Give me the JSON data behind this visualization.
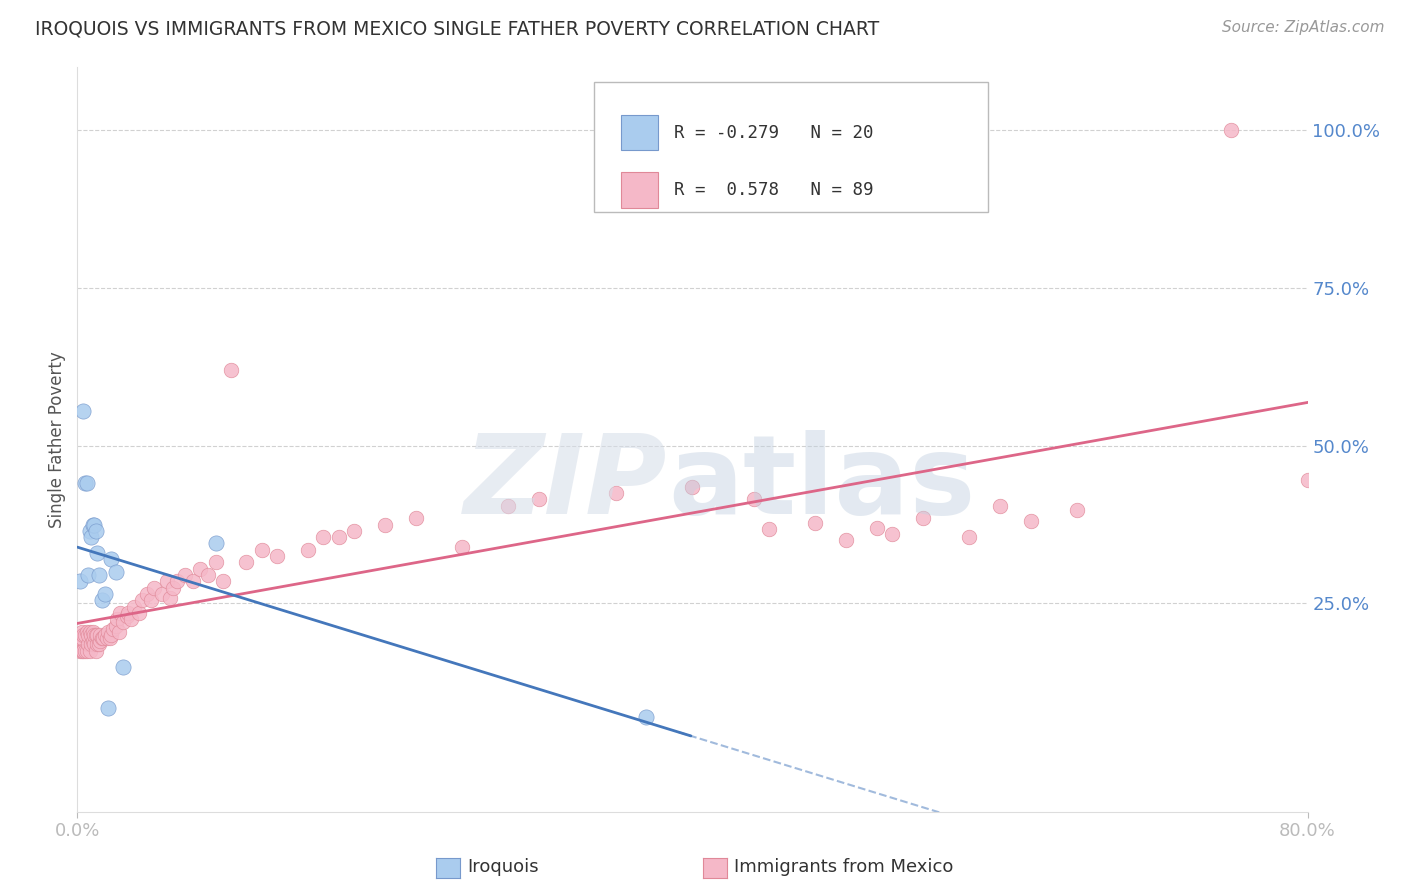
{
  "title": "IROQUOIS VS IMMIGRANTS FROM MEXICO SINGLE FATHER POVERTY CORRELATION CHART",
  "source": "Source: ZipAtlas.com",
  "ylabel": "Single Father Poverty",
  "xlim": [
    0.0,
    0.8
  ],
  "ylim": [
    -0.08,
    1.1
  ],
  "yticks_right": [
    0.25,
    0.5,
    0.75,
    1.0
  ],
  "ytick_right_labels": [
    "25.0%",
    "50.0%",
    "75.0%",
    "100.0%"
  ],
  "grid_color": "#cccccc",
  "bg_color": "#ffffff",
  "series1_label": "Iroquois",
  "series2_label": "Immigrants from Mexico",
  "series1_color": "#aaccee",
  "series2_color": "#f5b8c8",
  "series1_edge": "#7799cc",
  "series2_edge": "#e08898",
  "line1_color": "#4477bb",
  "line2_color": "#dd6688",
  "legend_R1": "-0.279",
  "legend_N1": "20",
  "legend_R2": "0.578",
  "legend_N2": "89",
  "iroquois_x": [
    0.002,
    0.004,
    0.005,
    0.006,
    0.007,
    0.008,
    0.009,
    0.01,
    0.011,
    0.012,
    0.013,
    0.014,
    0.016,
    0.018,
    0.02,
    0.022,
    0.025,
    0.03,
    0.09,
    0.37
  ],
  "iroquois_y": [
    0.285,
    0.555,
    0.44,
    0.44,
    0.295,
    0.365,
    0.355,
    0.375,
    0.375,
    0.365,
    0.33,
    0.295,
    0.255,
    0.265,
    0.085,
    0.32,
    0.3,
    0.15,
    0.345,
    0.07
  ],
  "mexico_x": [
    0.002,
    0.002,
    0.003,
    0.003,
    0.003,
    0.004,
    0.004,
    0.005,
    0.005,
    0.006,
    0.006,
    0.007,
    0.007,
    0.008,
    0.008,
    0.009,
    0.009,
    0.01,
    0.01,
    0.011,
    0.011,
    0.012,
    0.012,
    0.013,
    0.013,
    0.014,
    0.015,
    0.015,
    0.016,
    0.017,
    0.018,
    0.019,
    0.02,
    0.021,
    0.022,
    0.023,
    0.025,
    0.026,
    0.027,
    0.028,
    0.03,
    0.032,
    0.033,
    0.035,
    0.037,
    0.04,
    0.042,
    0.045,
    0.048,
    0.05,
    0.055,
    0.058,
    0.06,
    0.062,
    0.065,
    0.07,
    0.075,
    0.08,
    0.085,
    0.09,
    0.095,
    0.1,
    0.11,
    0.12,
    0.13,
    0.15,
    0.16,
    0.17,
    0.18,
    0.2,
    0.22,
    0.25,
    0.28,
    0.3,
    0.35,
    0.4,
    0.45,
    0.5,
    0.55,
    0.6,
    0.65,
    0.48,
    0.53,
    0.75,
    0.8,
    0.44,
    0.52,
    0.58,
    0.62
  ],
  "mexico_y": [
    0.175,
    0.195,
    0.175,
    0.195,
    0.205,
    0.175,
    0.2,
    0.175,
    0.2,
    0.175,
    0.205,
    0.185,
    0.2,
    0.175,
    0.205,
    0.185,
    0.2,
    0.19,
    0.205,
    0.185,
    0.2,
    0.175,
    0.2,
    0.185,
    0.2,
    0.185,
    0.19,
    0.2,
    0.195,
    0.195,
    0.2,
    0.195,
    0.205,
    0.195,
    0.2,
    0.21,
    0.215,
    0.225,
    0.205,
    0.235,
    0.22,
    0.23,
    0.235,
    0.225,
    0.245,
    0.235,
    0.255,
    0.265,
    0.255,
    0.275,
    0.265,
    0.285,
    0.258,
    0.275,
    0.285,
    0.295,
    0.285,
    0.305,
    0.295,
    0.315,
    0.285,
    0.62,
    0.315,
    0.335,
    0.325,
    0.335,
    0.355,
    0.355,
    0.365,
    0.375,
    0.385,
    0.34,
    0.405,
    0.415,
    0.425,
    0.435,
    0.368,
    0.35,
    0.385,
    0.405,
    0.398,
    0.378,
    0.36,
    1.0,
    0.445,
    0.415,
    0.37,
    0.355,
    0.38
  ]
}
